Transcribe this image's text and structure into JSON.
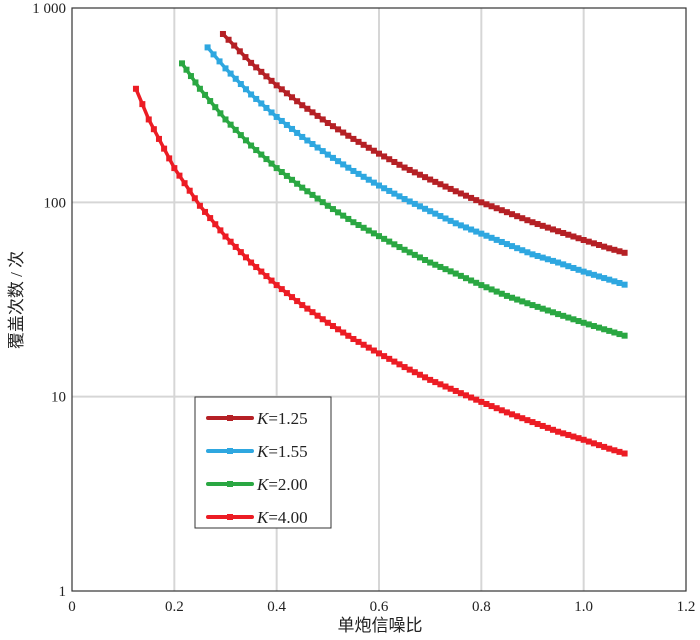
{
  "chart_data": {
    "type": "line",
    "title": "",
    "xlabel": "单炮信噪比",
    "ylabel": "覆盖次数 / 次",
    "xlim": [
      0,
      1.2
    ],
    "ylim": [
      1,
      1000
    ],
    "yscale": "log",
    "grid": true,
    "legend_position": "bottom-left",
    "x_ticks": [
      "0",
      "0.2",
      "0.4",
      "0.6",
      "0.8",
      "1.0",
      "1.2"
    ],
    "y_ticks": [
      "1",
      "10",
      "100",
      "1 000"
    ],
    "series": [
      {
        "name": "K=1.25",
        "k_label": "K",
        "k_value": "=1.25",
        "color": "#b52025",
        "x": [
          0.295,
          0.35,
          0.4,
          0.45,
          0.5,
          0.55,
          0.6,
          0.65,
          0.7,
          0.75,
          0.8,
          0.85,
          0.9,
          0.95,
          1.0,
          1.05,
          1.08
        ],
        "y": [
          735,
          522,
          400,
          316,
          256,
          212,
          178,
          151,
          131,
          114,
          100,
          89,
          79,
          71,
          64,
          58,
          55
        ]
      },
      {
        "name": "K=1.55",
        "k_label": "K",
        "k_value": "=1.55",
        "color": "#2ea7e0",
        "x": [
          0.265,
          0.3,
          0.35,
          0.4,
          0.45,
          0.5,
          0.55,
          0.6,
          0.65,
          0.7,
          0.75,
          0.8,
          0.85,
          0.9,
          0.95,
          1.0,
          1.05,
          1.08
        ],
        "y": [
          627,
          489,
          359,
          275,
          217,
          176,
          145,
          122,
          104,
          90,
          78,
          69,
          61,
          54,
          49,
          44,
          40,
          37.7
        ]
      },
      {
        "name": "K=2.00",
        "k_label": "K",
        "k_value": "=2.00",
        "color": "#2aa742",
        "x": [
          0.215,
          0.25,
          0.3,
          0.35,
          0.4,
          0.45,
          0.5,
          0.55,
          0.6,
          0.65,
          0.7,
          0.75,
          0.8,
          0.85,
          0.9,
          0.95,
          1.0,
          1.05,
          1.08
        ],
        "y": [
          519,
          384,
          267,
          196,
          150,
          119,
          96,
          79,
          67,
          57,
          49,
          43,
          37.5,
          33,
          29.6,
          26.6,
          24,
          21.8,
          20.6
        ]
      },
      {
        "name": "K=4.00",
        "k_label": "K",
        "k_value": "=4.00",
        "color": "#ec1c24",
        "x": [
          0.125,
          0.15,
          0.2,
          0.25,
          0.3,
          0.35,
          0.4,
          0.45,
          0.5,
          0.55,
          0.6,
          0.65,
          0.7,
          0.75,
          0.8,
          0.85,
          0.9,
          0.95,
          1.0,
          1.05,
          1.08
        ],
        "y": [
          384,
          267,
          150,
          96,
          66.7,
          49,
          37.5,
          29.6,
          24,
          19.8,
          16.7,
          14.2,
          12.2,
          10.7,
          9.4,
          8.3,
          7.4,
          6.6,
          6.0,
          5.4,
          5.1
        ]
      }
    ]
  }
}
